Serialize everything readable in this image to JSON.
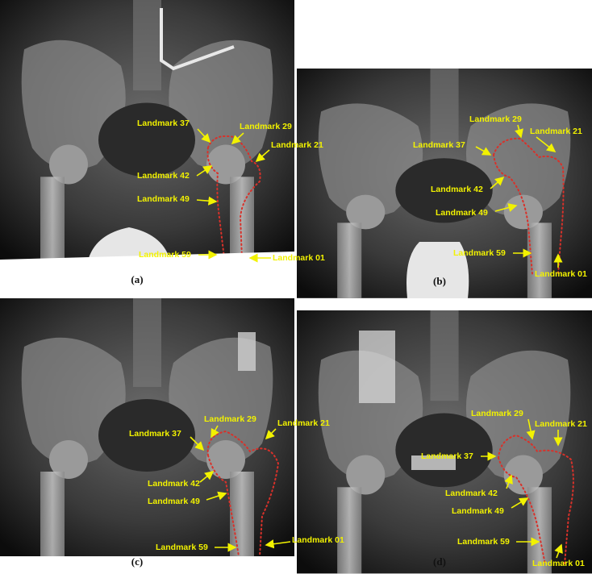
{
  "panels": [
    {
      "caption": "(a)",
      "landmarks": [
        "Landmark 37",
        "Landmark 29",
        "Landmark 21",
        "Landmark 42",
        "Landmark 49",
        "Landmark 59",
        "Landmark 01"
      ]
    },
    {
      "caption": "(b)",
      "landmarks": [
        "Landmark 29",
        "Landmark 21",
        "Landmark 37",
        "Landmark 42",
        "Landmark 49",
        "Landmark 59",
        "Landmark 01"
      ]
    },
    {
      "caption": "(c)",
      "landmarks": [
        "Landmark 29",
        "Landmark 21",
        "Landmark 37",
        "Landmark 42",
        "Landmark 49",
        "Landmark 59",
        "Landmark 01"
      ]
    },
    {
      "caption": "(d)",
      "landmarks": [
        "Landmark 29",
        "Landmark 21",
        "Landmark 37",
        "Landmark 42",
        "Landmark 49",
        "Landmark 59",
        "Landmark 01"
      ]
    }
  ]
}
